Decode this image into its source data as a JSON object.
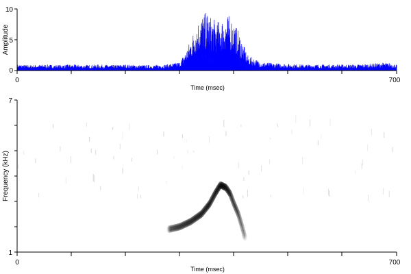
{
  "chart_data": [
    {
      "type": "area",
      "title": "",
      "xlabel": "Time (msec)",
      "ylabel": "Amplitude",
      "xlim": [
        0,
        700
      ],
      "ylim": [
        0,
        10
      ],
      "x_ticks": [
        "0",
        "700"
      ],
      "y_ticks": [
        "0",
        "5",
        "10"
      ],
      "series_color": "#0000ff",
      "series": [
        {
          "x": [
            0,
            25,
            50,
            75,
            100,
            125,
            150,
            175,
            200,
            225,
            250,
            275,
            300,
            310,
            320,
            330,
            340,
            350,
            360,
            370,
            380,
            390,
            400,
            410,
            425,
            450,
            475,
            500,
            525,
            550,
            575,
            600,
            625,
            650,
            675,
            690,
            700
          ],
          "values": [
            1.0,
            0.9,
            1.0,
            0.9,
            1.0,
            0.9,
            1.0,
            0.9,
            1.0,
            0.9,
            0.9,
            1.0,
            1.4,
            3.0,
            5.0,
            7.5,
            9.0,
            9.5,
            8.5,
            8.0,
            8.5,
            9.0,
            8.0,
            6.0,
            2.5,
            1.4,
            1.2,
            1.1,
            1.0,
            1.0,
            1.0,
            1.0,
            1.0,
            1.1,
            1.3,
            1.2,
            1.0
          ]
        }
      ],
      "grid": false
    },
    {
      "type": "heatmap",
      "title": "",
      "xlabel": "Time (msec)",
      "ylabel": "Frequency (kHz)",
      "xlim": [
        0,
        700
      ],
      "ylim": [
        1,
        7
      ],
      "x_ticks": [
        "0",
        "700"
      ],
      "y_ticks": [
        "1",
        "7"
      ],
      "colormap": "grayscale",
      "contour": {
        "x": [
          280,
          300,
          320,
          340,
          355,
          365,
          375,
          385,
          393,
          400,
          408,
          415,
          420
        ],
        "y": [
          1.9,
          2.0,
          2.2,
          2.5,
          2.9,
          3.3,
          3.65,
          3.55,
          3.3,
          2.9,
          2.5,
          2.0,
          1.6
        ],
        "intensity": [
          0.35,
          0.5,
          0.6,
          0.7,
          0.8,
          0.9,
          0.95,
          0.9,
          0.8,
          0.7,
          0.6,
          0.5,
          0.4
        ]
      },
      "grid": false
    }
  ]
}
